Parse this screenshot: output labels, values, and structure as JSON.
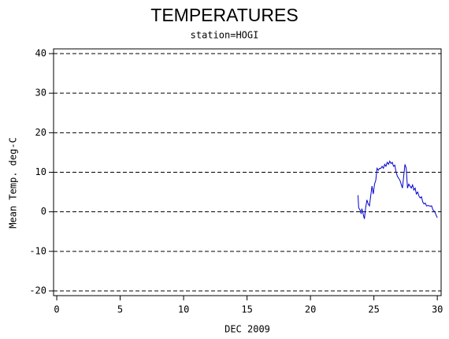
{
  "chart_data": {
    "type": "line",
    "title": "TEMPERATURES",
    "subtitle": "station=HOGI",
    "x_label": "DEC 2009",
    "y_label": "Mean Temp. deg-C",
    "xlim": [
      -0.25,
      30.3
    ],
    "ylim": [
      -21.2,
      41.2
    ],
    "xticks": [
      0,
      5,
      10,
      15,
      20,
      25,
      30
    ],
    "yticks": [
      -20,
      -10,
      0,
      10,
      20,
      30,
      40
    ],
    "grid": true,
    "series": [
      {
        "name": "Mean Temp.",
        "color": "#0000cc",
        "x": [
          23.75,
          23.8,
          23.9,
          24.0,
          24.05,
          24.15,
          24.25,
          24.35,
          24.45,
          24.55,
          24.65,
          24.75,
          24.85,
          24.95,
          25.05,
          25.15,
          25.25,
          25.35,
          25.45,
          25.55,
          25.65,
          25.75,
          25.85,
          25.95,
          26.05,
          26.15,
          26.25,
          26.35,
          26.45,
          26.55,
          26.65,
          26.75,
          26.85,
          26.95,
          27.05,
          27.15,
          27.25,
          27.35,
          27.45,
          27.55,
          27.65,
          27.75,
          27.85,
          27.95,
          28.05,
          28.15,
          28.25,
          28.35,
          28.45,
          28.55,
          28.65,
          28.75,
          28.85,
          28.95,
          29.05,
          29.15,
          29.3,
          29.45,
          29.55,
          29.65,
          29.8,
          29.9,
          30.0
        ],
        "values": [
          4.2,
          1,
          0.5,
          -0.5,
          0.8,
          -0.5,
          -1.8,
          1,
          3,
          2,
          1.5,
          4,
          6.5,
          4.5,
          7,
          8,
          11,
          10.5,
          11,
          11,
          11.5,
          11,
          12,
          11.5,
          12.5,
          12,
          12.8,
          12.2,
          12.5,
          11.5,
          11.8,
          10,
          9,
          8.5,
          8,
          7,
          6,
          9,
          12,
          11,
          6,
          7,
          6.5,
          6,
          6.8,
          5.5,
          6,
          4.5,
          5,
          4,
          3.5,
          3.8,
          2.5,
          2,
          2.2,
          1.5,
          1.6,
          1.4,
          1.5,
          0.5,
          0,
          -0.8,
          -1.5
        ]
      }
    ]
  }
}
